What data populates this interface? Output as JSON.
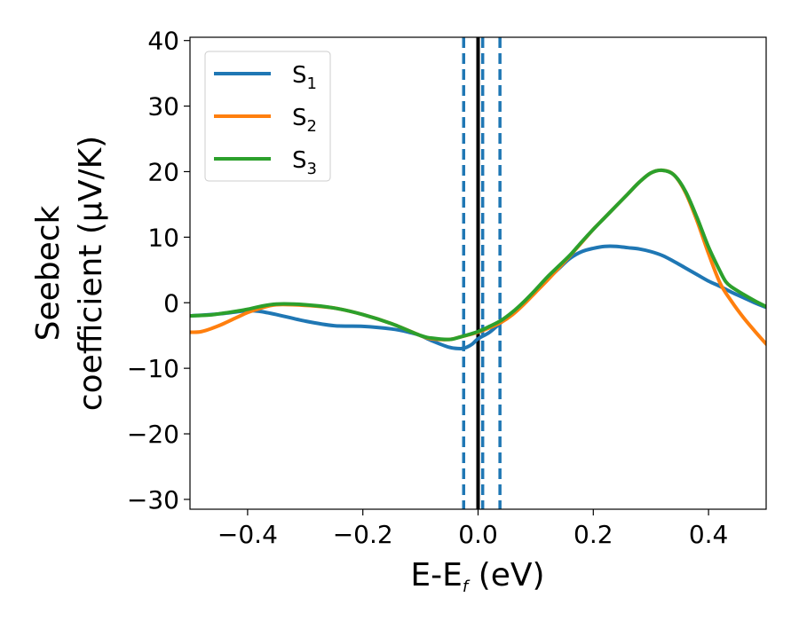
{
  "chart_data": {
    "type": "line",
    "xlabel": {
      "main": "E-E",
      "sub": "f",
      "tail": " (eV)"
    },
    "ylabel": {
      "line1": "Seebeck",
      "line2": "coefficient  (μV/K)"
    },
    "xlim": [
      -0.5,
      0.5
    ],
    "ylim": [
      -31.5,
      40.5
    ],
    "xticks": [
      -0.4,
      -0.2,
      0.0,
      0.2,
      0.4
    ],
    "xtick_labels": [
      "−0.4",
      "−0.2",
      "0.0",
      "0.2",
      "0.4"
    ],
    "yticks": [
      -30,
      -20,
      -10,
      0,
      10,
      20,
      30,
      40
    ],
    "ytick_labels": [
      "−30",
      "−20",
      "−10",
      "0",
      "10",
      "20",
      "30",
      "40"
    ],
    "grid": false,
    "legend_position": "top-left",
    "vertical_lines": [
      {
        "x": 0.0,
        "style": "solid",
        "color": "#000000"
      },
      {
        "x": -0.025,
        "style": "dashed",
        "color": "#1f77b4"
      },
      {
        "x": 0.008,
        "style": "dashed",
        "color": "#1f77b4"
      },
      {
        "x": 0.038,
        "style": "dashed",
        "color": "#1f77b4"
      }
    ],
    "series": [
      {
        "name": "S",
        "sub": "1",
        "color": "#1f77b4",
        "x": [
          -0.5,
          -0.45,
          -0.42,
          -0.4,
          -0.38,
          -0.35,
          -0.3,
          -0.25,
          -0.2,
          -0.15,
          -0.12,
          -0.1,
          -0.08,
          -0.05,
          -0.03,
          -0.02,
          -0.01,
          0.0,
          0.02,
          0.04,
          0.06,
          0.08,
          0.1,
          0.12,
          0.14,
          0.16,
          0.18,
          0.2,
          0.22,
          0.24,
          0.26,
          0.28,
          0.3,
          0.32,
          0.34,
          0.36,
          0.38,
          0.4,
          0.42,
          0.44,
          0.46,
          0.48,
          0.5
        ],
        "y": [
          -2.0,
          -1.7,
          -1.4,
          -1.2,
          -1.3,
          -1.8,
          -2.8,
          -3.5,
          -3.6,
          -4.0,
          -4.5,
          -5.0,
          -5.8,
          -6.8,
          -7.0,
          -6.8,
          -6.3,
          -5.5,
          -4.5,
          -3.0,
          -1.5,
          0.0,
          1.8,
          3.5,
          5.2,
          6.8,
          7.8,
          8.3,
          8.6,
          8.6,
          8.4,
          8.2,
          7.8,
          7.2,
          6.3,
          5.3,
          4.3,
          3.3,
          2.5,
          1.6,
          0.8,
          0.0,
          -0.7
        ]
      },
      {
        "name": "S",
        "sub": "2",
        "color": "#ff7f0e",
        "x": [
          -0.5,
          -0.48,
          -0.45,
          -0.42,
          -0.4,
          -0.38,
          -0.35,
          -0.3,
          -0.25,
          -0.2,
          -0.15,
          -0.1,
          -0.08,
          -0.05,
          -0.03,
          0.0,
          0.02,
          0.04,
          0.06,
          0.08,
          0.1,
          0.12,
          0.14,
          0.16,
          0.18,
          0.2,
          0.22,
          0.24,
          0.26,
          0.28,
          0.3,
          0.32,
          0.34,
          0.36,
          0.38,
          0.4,
          0.42,
          0.44,
          0.46,
          0.48,
          0.5
        ],
        "y": [
          -4.5,
          -4.4,
          -3.5,
          -2.3,
          -1.5,
          -0.9,
          -0.3,
          -0.4,
          -0.8,
          -1.8,
          -3.2,
          -5.0,
          -5.5,
          -5.6,
          -5.2,
          -4.5,
          -3.8,
          -3.0,
          -1.8,
          -0.2,
          1.6,
          3.4,
          5.3,
          7.2,
          9.2,
          11.2,
          13.0,
          14.8,
          16.6,
          18.4,
          19.8,
          20.2,
          19.5,
          16.8,
          12.5,
          7.5,
          3.0,
          0.2,
          -2.2,
          -4.3,
          -6.3
        ]
      },
      {
        "name": "S",
        "sub": "3",
        "color": "#2ca02c",
        "x": [
          -0.5,
          -0.47,
          -0.45,
          -0.42,
          -0.4,
          -0.38,
          -0.35,
          -0.3,
          -0.25,
          -0.2,
          -0.15,
          -0.1,
          -0.08,
          -0.05,
          -0.03,
          0.0,
          0.02,
          0.04,
          0.06,
          0.08,
          0.1,
          0.12,
          0.14,
          0.16,
          0.18,
          0.2,
          0.22,
          0.24,
          0.26,
          0.28,
          0.3,
          0.32,
          0.34,
          0.36,
          0.38,
          0.4,
          0.42,
          0.43,
          0.44,
          0.46,
          0.48,
          0.5
        ],
        "y": [
          -2.0,
          -1.9,
          -1.7,
          -1.3,
          -1.0,
          -0.6,
          -0.2,
          -0.3,
          -0.8,
          -1.8,
          -3.2,
          -5.0,
          -5.4,
          -5.6,
          -5.2,
          -4.4,
          -3.6,
          -2.7,
          -1.4,
          0.2,
          2.0,
          3.9,
          5.6,
          7.3,
          9.3,
          11.2,
          13.0,
          14.8,
          16.6,
          18.4,
          19.8,
          20.2,
          19.5,
          17.0,
          13.0,
          8.5,
          4.8,
          3.2,
          2.4,
          1.3,
          0.3,
          -0.6
        ]
      }
    ]
  }
}
